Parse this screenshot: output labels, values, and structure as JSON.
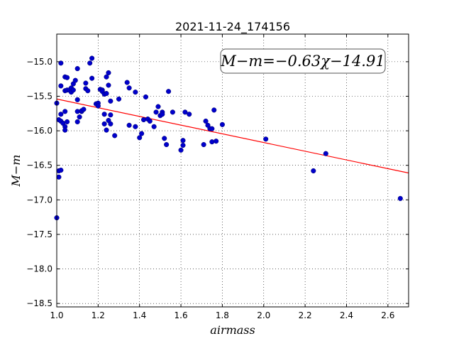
{
  "chart_data": {
    "type": "scatter",
    "title": "2021-11-24_174156",
    "xlabel": "airmass",
    "ylabel": "M−m",
    "annotation": "M−m=−0.63χ−14.91",
    "xlim": [
      1.0,
      2.7
    ],
    "ylim": [
      -18.55,
      -14.6
    ],
    "x_ticks": [
      1.0,
      1.2,
      1.4,
      1.6,
      1.8,
      2.0,
      2.2,
      2.4,
      2.6
    ],
    "x_tick_labels": [
      "1.0",
      "1.2",
      "1.4",
      "1.6",
      "1.8",
      "2.0",
      "2.2",
      "2.4",
      "2.6"
    ],
    "y_ticks": [
      -15.0,
      -15.5,
      -16.0,
      -16.5,
      -17.0,
      -17.5,
      -18.0,
      -18.5
    ],
    "y_tick_labels": [
      "−15.0",
      "−15.5",
      "−16.0",
      "−16.5",
      "−17.0",
      "−17.5",
      "−18.0",
      "−18.5"
    ],
    "grid": true,
    "fit_line": {
      "slope": -0.63,
      "intercept": -14.91,
      "color": "#ff0000"
    },
    "marker_color": "#0000cc",
    "points": [
      [
        1.0,
        -17.26
      ],
      [
        1.01,
        -16.67
      ],
      [
        1.01,
        -16.58
      ],
      [
        1.02,
        -16.57
      ],
      [
        1.0,
        -15.6
      ],
      [
        1.01,
        -15.84
      ],
      [
        1.02,
        -15.86
      ],
      [
        1.03,
        -15.89
      ],
      [
        1.02,
        -15.76
      ],
      [
        1.02,
        -15.02
      ],
      [
        1.02,
        -15.35
      ],
      [
        1.04,
        -15.22
      ],
      [
        1.04,
        -15.42
      ],
      [
        1.04,
        -15.72
      ],
      [
        1.04,
        -15.94
      ],
      [
        1.04,
        -15.99
      ],
      [
        1.05,
        -15.87
      ],
      [
        1.05,
        -15.23
      ],
      [
        1.05,
        -15.41
      ],
      [
        1.06,
        -15.41
      ],
      [
        1.07,
        -15.38
      ],
      [
        1.07,
        -15.44
      ],
      [
        1.08,
        -15.32
      ],
      [
        1.08,
        -15.41
      ],
      [
        1.09,
        -15.27
      ],
      [
        1.1,
        -15.55
      ],
      [
        1.1,
        -15.87
      ],
      [
        1.1,
        -15.72
      ],
      [
        1.1,
        -15.1
      ],
      [
        1.11,
        -15.8
      ],
      [
        1.12,
        -15.72
      ],
      [
        1.12,
        -15.71
      ],
      [
        1.13,
        -15.69
      ],
      [
        1.14,
        -15.31
      ],
      [
        1.14,
        -15.39
      ],
      [
        1.15,
        -15.42
      ],
      [
        1.16,
        -15.02
      ],
      [
        1.17,
        -14.95
      ],
      [
        1.17,
        -15.24
      ],
      [
        1.19,
        -15.61
      ],
      [
        1.2,
        -15.6
      ],
      [
        1.2,
        -15.64
      ],
      [
        1.21,
        -15.4
      ],
      [
        1.22,
        -15.41
      ],
      [
        1.22,
        -15.43
      ],
      [
        1.23,
        -15.47
      ],
      [
        1.23,
        -15.76
      ],
      [
        1.23,
        -15.9
      ],
      [
        1.24,
        -15.99
      ],
      [
        1.24,
        -15.46
      ],
      [
        1.24,
        -15.22
      ],
      [
        1.25,
        -15.16
      ],
      [
        1.25,
        -15.34
      ],
      [
        1.25,
        -15.85
      ],
      [
        1.26,
        -15.9
      ],
      [
        1.26,
        -15.77
      ],
      [
        1.26,
        -15.57
      ],
      [
        1.28,
        -16.07
      ],
      [
        1.3,
        -15.54
      ],
      [
        1.34,
        -15.3
      ],
      [
        1.35,
        -15.38
      ],
      [
        1.35,
        -15.92
      ],
      [
        1.38,
        -15.44
      ],
      [
        1.38,
        -15.94
      ],
      [
        1.4,
        -16.1
      ],
      [
        1.41,
        -16.04
      ],
      [
        1.42,
        -15.84
      ],
      [
        1.43,
        -15.51
      ],
      [
        1.44,
        -15.83
      ],
      [
        1.45,
        -15.86
      ],
      [
        1.47,
        -15.94
      ],
      [
        1.48,
        -15.73
      ],
      [
        1.49,
        -15.65
      ],
      [
        1.5,
        -15.78
      ],
      [
        1.51,
        -15.73
      ],
      [
        1.51,
        -15.76
      ],
      [
        1.52,
        -16.11
      ],
      [
        1.53,
        -16.2
      ],
      [
        1.54,
        -15.43
      ],
      [
        1.56,
        -15.73
      ],
      [
        1.6,
        -16.28
      ],
      [
        1.61,
        -16.21
      ],
      [
        1.61,
        -16.14
      ],
      [
        1.62,
        -15.73
      ],
      [
        1.64,
        -15.76
      ],
      [
        1.71,
        -16.2
      ],
      [
        1.72,
        -15.86
      ],
      [
        1.73,
        -15.92
      ],
      [
        1.74,
        -15.97
      ],
      [
        1.75,
        -16.16
      ],
      [
        1.75,
        -15.97
      ],
      [
        1.76,
        -15.7
      ],
      [
        1.77,
        -16.15
      ],
      [
        1.8,
        -15.91
      ],
      [
        2.01,
        -16.12
      ],
      [
        2.24,
        -16.58
      ],
      [
        2.3,
        -16.33
      ],
      [
        2.66,
        -16.98
      ]
    ]
  }
}
